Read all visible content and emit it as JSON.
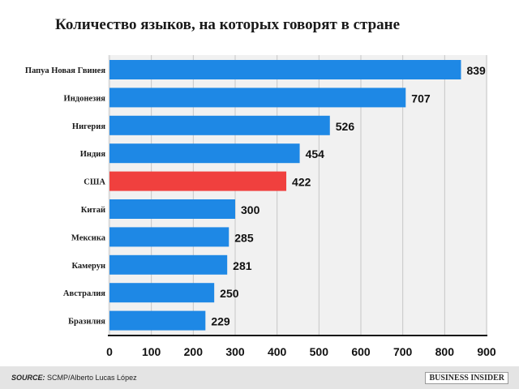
{
  "chart_data": {
    "type": "bar",
    "orientation": "horizontal",
    "title": "Количество языков, на которых говорят в стране",
    "categories": [
      "Папуа Новая Гвинея",
      "Индонезия",
      "Нигерия",
      "Индия",
      "США",
      "Китай",
      "Мексика",
      "Камерун",
      "Австралия",
      "Бразилия"
    ],
    "values": [
      839,
      707,
      526,
      454,
      422,
      300,
      285,
      281,
      250,
      229
    ],
    "highlight": "США",
    "xlim": [
      0,
      900
    ],
    "xticks": [
      "0",
      "100",
      "200",
      "300",
      "400",
      "500",
      "600",
      "700",
      "800",
      "900"
    ],
    "xlabel": "",
    "ylabel": "",
    "grid": "vertical",
    "colors": {
      "bar": "#1e88e5",
      "highlight": "#f0403e"
    }
  },
  "footer": {
    "source_label": "SOURCE:",
    "source_text": " SCMP/Alberto Lucas López",
    "logo": "BUSINESS INSIDER"
  }
}
